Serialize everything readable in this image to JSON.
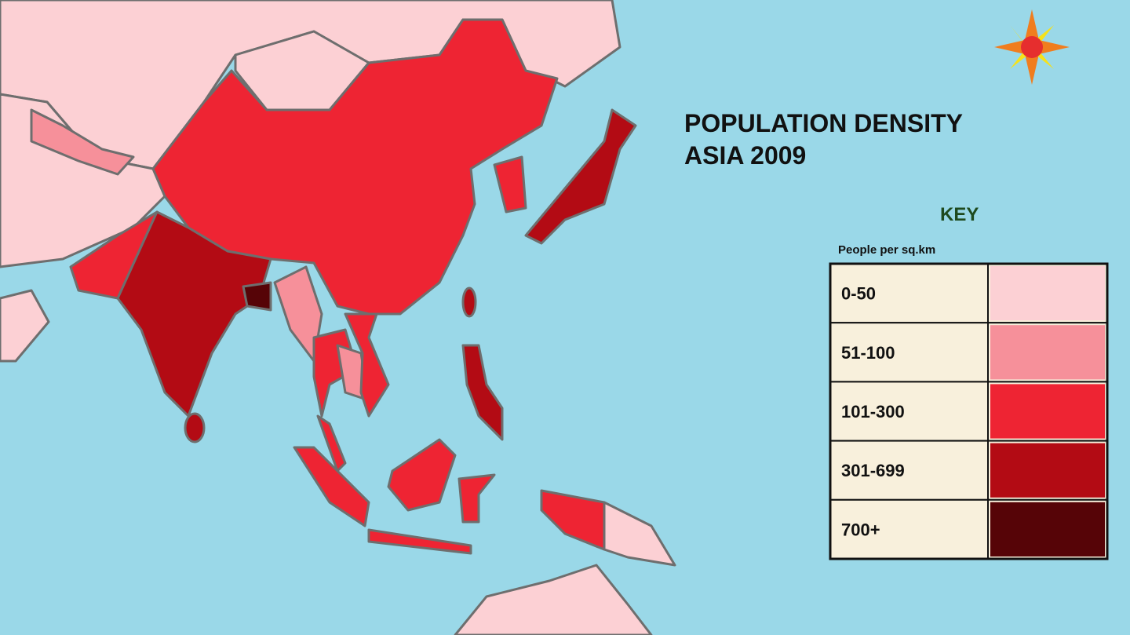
{
  "title": [
    "POPULATION DENSITY",
    "ASIA 2009"
  ],
  "key": {
    "title": "KEY",
    "unit": "People per sq.km",
    "rows": [
      {
        "label": "0-50",
        "color": "#fcd0d4"
      },
      {
        "label": "51-100",
        "color": "#f6909a"
      },
      {
        "label": "101-300",
        "color": "#ee2433"
      },
      {
        "label": "301-699",
        "color": "#b30b14"
      },
      {
        "label": "700+",
        "color": "#560407"
      }
    ]
  }
}
